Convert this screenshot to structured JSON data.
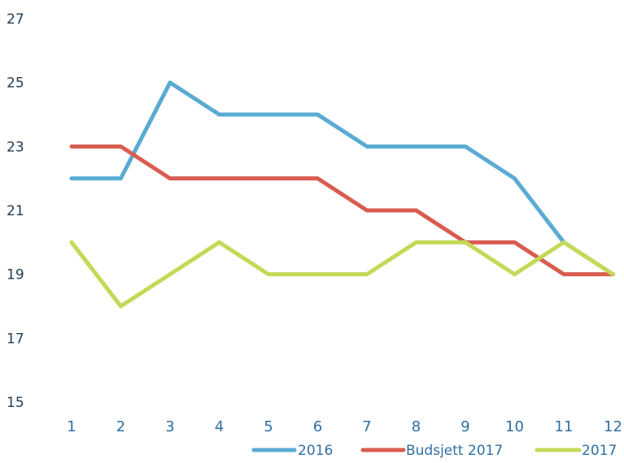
{
  "chart_data": {
    "type": "line",
    "categories": [
      "1",
      "2",
      "3",
      "4",
      "5",
      "6",
      "7",
      "8",
      "9",
      "10",
      "11",
      "12"
    ],
    "ylim": [
      15,
      27
    ],
    "yticks": [
      15,
      17,
      19,
      21,
      23,
      25,
      27
    ],
    "grid": false,
    "legend": "bottom-right",
    "series": [
      {
        "name": "2016",
        "color": "#5aabd3",
        "values": [
          22,
          22,
          25,
          24,
          24,
          24,
          23,
          23,
          23,
          22,
          20,
          19
        ]
      },
      {
        "name": "Budsjett 2017",
        "color": "#d85c4f",
        "values": [
          23,
          23,
          22,
          22,
          22,
          22,
          21,
          21,
          20,
          20,
          19,
          19
        ]
      },
      {
        "name": "2017",
        "color": "#c3d957",
        "values": [
          20,
          18,
          19,
          20,
          19,
          19,
          19,
          20,
          20,
          19,
          20,
          19
        ]
      }
    ]
  }
}
